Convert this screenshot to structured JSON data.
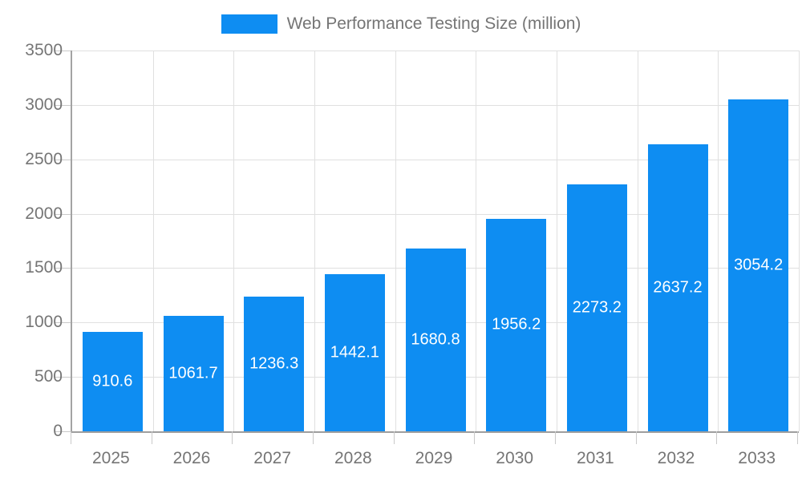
{
  "chart_data": {
    "type": "bar",
    "title": "Web Performance Testing Size (million)",
    "categories": [
      "2025",
      "2026",
      "2027",
      "2028",
      "2029",
      "2030",
      "2031",
      "2032",
      "2033"
    ],
    "values": [
      910.6,
      1061.7,
      1236.3,
      1442.1,
      1680.8,
      1956.2,
      2273.2,
      2637.2,
      3054.2
    ],
    "value_labels": [
      "910.6",
      "1061.7",
      "1236.3",
      "1442.1",
      "1680.8",
      "1956.2",
      "2273.2",
      "2637.2",
      "3054.2"
    ],
    "xlabel": "",
    "ylabel": "",
    "ylim": [
      0,
      3500
    ],
    "ytick_step": 500,
    "ytick_labels": [
      "0",
      "500",
      "1000",
      "1500",
      "2000",
      "2500",
      "3000",
      "3500"
    ],
    "grid": true,
    "legend_position": "top-center",
    "colors": {
      "bar": "#0e8df2",
      "value_label": "#ffffff",
      "axis_text": "#757575",
      "grid_line": "#e0e0e0",
      "axis_line": "#9e9e9e",
      "background": "#ffffff"
    }
  },
  "legend": {
    "label": "Web Performance Testing Size (million)"
  }
}
